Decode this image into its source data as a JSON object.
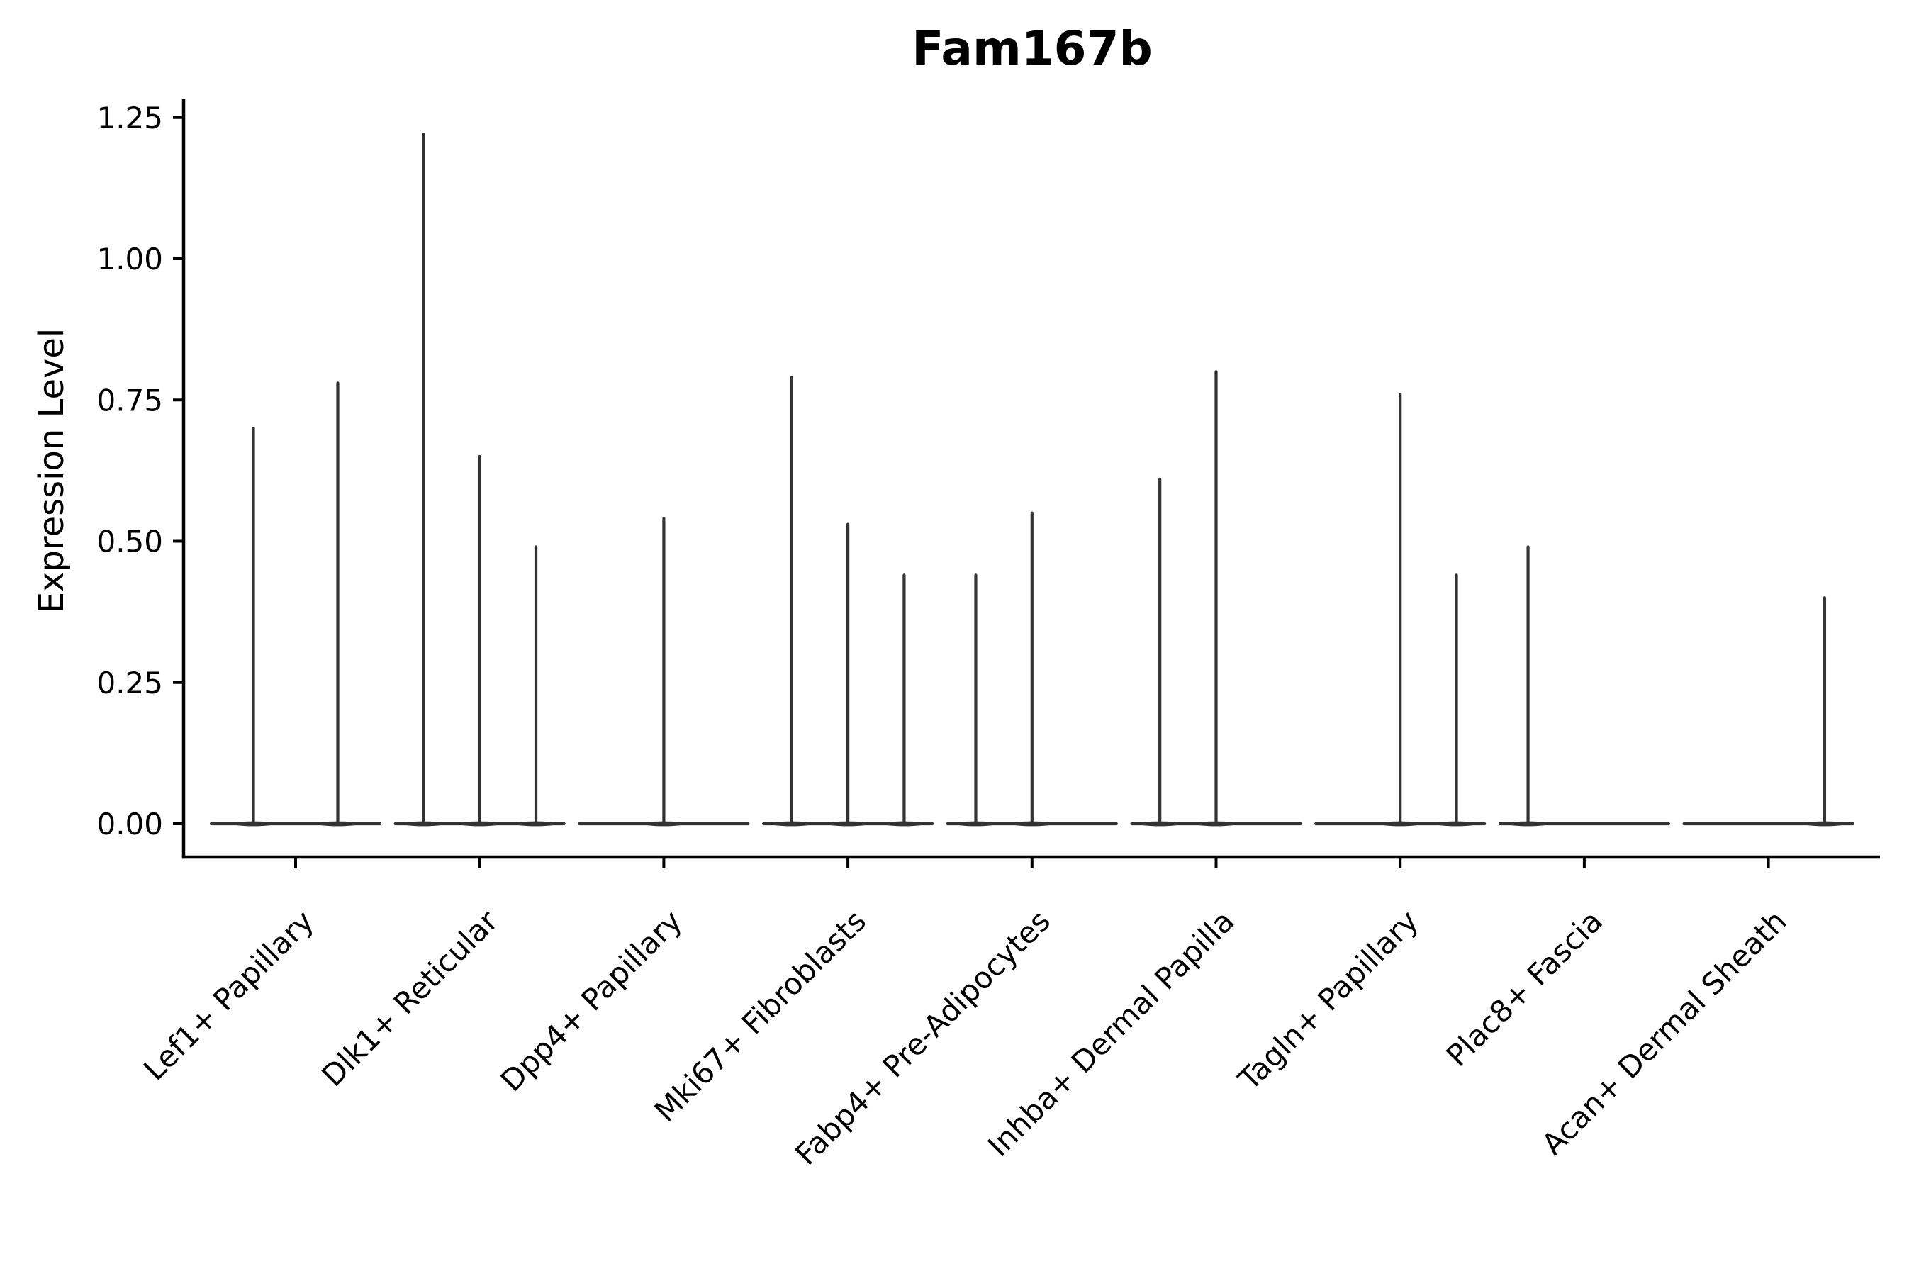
{
  "figure": {
    "title": "Fam167b",
    "ylabel": "Expression Level",
    "background_color": "#ffffff",
    "axis_color": "#000000",
    "violin_color": "#333333"
  },
  "chart_data": {
    "type": "violin",
    "title": "Fam167b",
    "xlabel": "",
    "ylabel": "Expression Level",
    "ylim": [
      0,
      1.28
    ],
    "ytick_values": [
      0.0,
      0.25,
      0.5,
      0.75,
      1.0,
      1.25
    ],
    "ytick_labels": [
      "0.00",
      "0.25",
      "0.50",
      "0.75",
      "1.00",
      "1.25"
    ],
    "grid": false,
    "legend": false,
    "description": "Violin plot; most cells have zero expression so each violin is a flat baseline at 0 with a thin spike up to its maximum expression value. Some categories contain multiple sub-violins sharing one baseline slot; a 0 value means a flat violin with no spike.",
    "slot_fill_fraction": 0.92,
    "categories": [
      "Lef1+ Papillary",
      "Dlk1+ Reticular",
      "Dpp4+ Papillary",
      "Mki67+ Fibroblasts",
      "Fabp4+ Pre-Adipocytes",
      "Inhba+ Dermal Papilla",
      "Tagln+ Papillary",
      "Plac8+ Fascia",
      "Acan+ Dermal Sheath"
    ],
    "groups": [
      {
        "label": "Lef1+ Papillary",
        "violin_maxima": [
          0.7,
          0.78
        ]
      },
      {
        "label": "Dlk1+ Reticular",
        "violin_maxima": [
          1.22,
          0.65,
          0.49
        ]
      },
      {
        "label": "Dpp4+ Papillary",
        "violin_maxima": [
          0.54
        ]
      },
      {
        "label": "Mki67+ Fibroblasts",
        "violin_maxima": [
          0.79,
          0.53,
          0.44
        ]
      },
      {
        "label": "Fabp4+ Pre-Adipocytes",
        "violin_maxima": [
          0.44,
          0.55,
          0
        ]
      },
      {
        "label": "Inhba+ Dermal Papilla",
        "violin_maxima": [
          0.61,
          0.8,
          0
        ]
      },
      {
        "label": "Tagln+ Papillary",
        "violin_maxima": [
          0,
          0.76,
          0.44
        ]
      },
      {
        "label": "Plac8+ Fascia",
        "violin_maxima": [
          0.49,
          0,
          0
        ]
      },
      {
        "label": "Acan+ Dermal Sheath",
        "violin_maxima": [
          0,
          0,
          0.4
        ]
      }
    ]
  }
}
